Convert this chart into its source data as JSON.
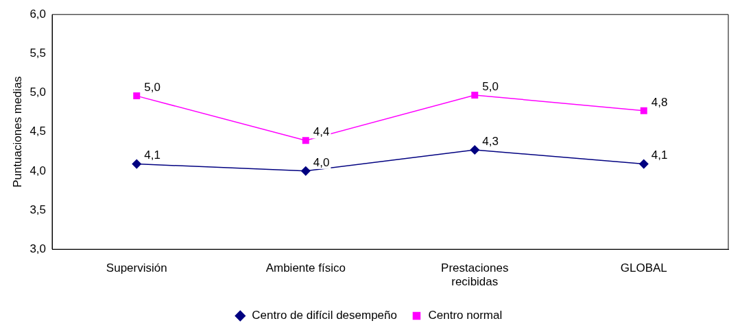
{
  "chart_data": {
    "type": "line",
    "ylabel": "Puntuaciones medias",
    "categories": [
      "Supervisión",
      "Ambiente físico",
      "Prestaciones recibidas",
      "GLOBAL"
    ],
    "series": [
      {
        "name": "Centro de difícil desempeño",
        "color": "#000080",
        "marker": "diamond",
        "values": [
          4.09,
          4.0,
          4.27,
          4.09
        ],
        "value_labels": [
          "4,1",
          "4,0",
          "4,3",
          "4,1"
        ]
      },
      {
        "name": "Centro normal",
        "color": "#ff00ff",
        "marker": "square",
        "values": [
          4.96,
          4.39,
          4.97,
          4.77
        ],
        "value_labels": [
          "5,0",
          "4,4",
          "5,0",
          "4,8"
        ]
      }
    ],
    "ylim": [
      3,
      6
    ],
    "yticks": [
      {
        "value": 3,
        "label": "3,0"
      },
      {
        "value": 3.5,
        "label": "3,5"
      },
      {
        "value": 4,
        "label": "4,0"
      },
      {
        "value": 4.5,
        "label": "4,5"
      },
      {
        "value": 5,
        "label": "5,0"
      },
      {
        "value": 5.5,
        "label": "5,5"
      },
      {
        "value": 6,
        "label": "6,0"
      }
    ],
    "grid": false,
    "legend": "bottom"
  }
}
